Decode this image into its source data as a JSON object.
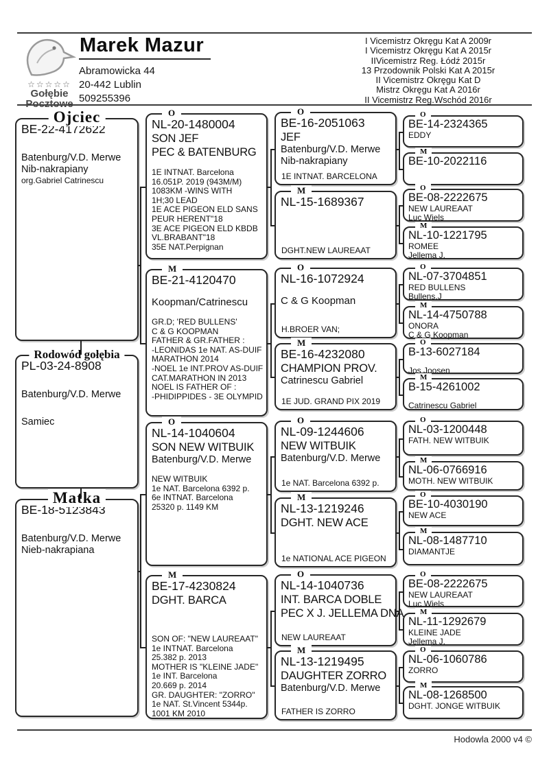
{
  "header": {
    "name": "Marek Mazur",
    "address": [
      "Abramowicka 44",
      "20-442 Lublin",
      "509255396"
    ],
    "logo": {
      "stars": "☆☆☆☆☆",
      "word1": "Gołębie",
      "word2": "Pocztowe",
      "icon": "pigeon-head-icon"
    },
    "achievements": [
      "I Vicemistrz Okręgu Kat A  2009r",
      "I Vicemistrz Okręgu Kat A  2015r",
      "IIVicemistrz Reg. Łódź 2015r",
      "13 Przodownik Polski Kat A 2015r",
      "II Vicemistrz Okręgu Kat D",
      "Mistrz Okręgu Kat A 2016r",
      "II Vicemistrz Reg.Wschód 2016r"
    ]
  },
  "pedigree": {
    "father": {
      "title": "Ojciec",
      "lines": [
        [
          "BE-22-4172622",
          "ring"
        ],
        [
          "",
          "gap24"
        ],
        [
          "Batenburg/V.D. Merwe",
          "owner"
        ],
        [
          "Nib-nakrapiany",
          "owner"
        ],
        [
          "org.Gabriel Catrinescu",
          "org"
        ]
      ]
    },
    "subject": {
      "title": "Rodowód gołębia",
      "lines": [
        [
          "PL-03-24-8908",
          "ring"
        ],
        [
          "",
          "gap24"
        ],
        [
          "Batenburg/V.D. Merwe",
          "owner"
        ],
        [
          "",
          "gap24"
        ],
        [
          "Samiec",
          "owner"
        ]
      ]
    },
    "mother": {
      "title": "Matka",
      "lines": [
        [
          "BE-18-5123843",
          "ring"
        ],
        [
          "",
          "gap24"
        ],
        [
          "Batenburg/V.D. Merwe",
          "owner"
        ],
        [
          "Nieb-nakrapiana",
          "owner"
        ]
      ]
    },
    "gen2": [
      {
        "sex": "O",
        "lines": [
          [
            "NL-20-1480004",
            "ring"
          ],
          [
            "SON JEF",
            "name"
          ],
          [
            "PEC & BATENBURG",
            "name"
          ],
          [
            "",
            "gap"
          ],
          [
            "1E INTNAT. Barcelona",
            "note"
          ],
          [
            "16.051P. 2019 (943M/M)",
            "note"
          ],
          [
            "1083KM -WINS WITH",
            "note"
          ],
          [
            "1H;30 LEAD",
            "note"
          ],
          [
            "1E ACE PIGEON ELD SANS",
            "note"
          ],
          [
            "PEUR HERENT\"18",
            "note"
          ],
          [
            "3E ACE PIGEON ELD KBDB",
            "note"
          ],
          [
            "VL.BRABANT\"18",
            "note"
          ],
          [
            "35E NAT.Perpignan",
            "note"
          ]
        ]
      },
      {
        "sex": "M",
        "lines": [
          [
            "BE-21-4120470",
            "ring"
          ],
          [
            "",
            "gap"
          ],
          [
            "Koopman/Catrinescu",
            "name15"
          ],
          [
            "",
            "gap"
          ],
          [
            "GR.D; 'RED BULLENS'",
            "note"
          ],
          [
            "C & G KOOPMAN",
            "note"
          ],
          [
            "FATHER & GR.FATHER :",
            "note"
          ],
          [
            "-LEONIDAS 1e NAT. AS-DUIF",
            "note"
          ],
          [
            "MARATHON 2014",
            "note"
          ],
          [
            "-NOEL 1e INT.PROV AS-DUIF",
            "note"
          ],
          [
            "CAT.MARATHON IN 2013",
            "note"
          ],
          [
            "NOEL IS FATHER OF :",
            "note"
          ],
          [
            "-PHIDIPPIDES - 3E OLYMPID",
            "note"
          ]
        ]
      },
      {
        "sex": "O",
        "lines": [
          [
            "NL-14-1040604",
            "ring"
          ],
          [
            "SON NEW WITBUIK",
            "name"
          ],
          [
            "Batenburg/V.D. Merwe",
            "owner"
          ],
          [
            "",
            "gap"
          ],
          [
            "NEW WITBUIK",
            "note"
          ],
          [
            "1e NAT. Barcelona 6392 p.",
            "note"
          ],
          [
            "6e INTNAT. Barcelona",
            "note"
          ],
          [
            "25320 p. 1149 KM",
            "note"
          ]
        ]
      },
      {
        "sex": "M",
        "lines": [
          [
            "BE-17-4230824",
            "ring"
          ],
          [
            "DGHT. BARCA",
            "name"
          ],
          [
            "",
            "gap40"
          ],
          [
            "SON OF: \"NEW LAUREAAT\"",
            "note"
          ],
          [
            "1e INTNAT. Barcelona",
            "note"
          ],
          [
            "25.382 p. 2013",
            "note"
          ],
          [
            "MOTHER IS \"KLEINE JADE\"",
            "note"
          ],
          [
            "1e INT. Barcelona",
            "note"
          ],
          [
            "20.669 p. 2014",
            "note"
          ],
          [
            "GR. DAUGHTER: \"ZORRO\"",
            "note"
          ],
          [
            "1e NAT. St.Vincent 5344p.",
            "note"
          ],
          [
            "1001 KM 2010",
            "note"
          ]
        ]
      }
    ],
    "gen3": [
      {
        "sex": "O",
        "lines": [
          [
            "BE-16-2051063",
            "ring"
          ],
          [
            "JEF",
            "name"
          ],
          [
            "Batenburg/V.D. Merwe",
            "owner"
          ],
          [
            "Nib-nakrapiany",
            "owner"
          ]
        ],
        "bottom": "1E INTNAT. BARCELONA"
      },
      {
        "sex": "M",
        "lines": [
          [
            "NL-15-1689367",
            "ring"
          ]
        ],
        "bottom": "DGHT.NEW LAUREAAT"
      },
      {
        "sex": "O",
        "lines": [
          [
            "NL-16-1072924",
            "ring"
          ],
          [
            "",
            "gap"
          ],
          [
            "C & G Koopman",
            "name15"
          ]
        ],
        "bottom": "H.BROER VAN;"
      },
      {
        "sex": "M",
        "lines": [
          [
            "BE-16-4232080",
            "ring"
          ],
          [
            "CHAMPION PROV.",
            "name"
          ],
          [
            "Catrinescu Gabriel",
            "owner"
          ]
        ],
        "bottom": "1E JUD. GRAND PIX 2019"
      },
      {
        "sex": "O",
        "lines": [
          [
            "NL-09-1244606",
            "ring"
          ],
          [
            "NEW WITBUIK",
            "name"
          ],
          [
            "Batenburg/V.D. Merwe",
            "owner"
          ]
        ],
        "bottom": "1e NAT. Barcelona 6392 p."
      },
      {
        "sex": "M",
        "lines": [
          [
            "NL-13-1219246",
            "ring"
          ],
          [
            "DGHT. NEW ACE",
            "name"
          ]
        ],
        "bottom": "1e NATIONAL ACE PIGEON"
      },
      {
        "sex": "O",
        "lines": [
          [
            "NL-14-1040736",
            "ring"
          ],
          [
            "INT. BARCA DOBLE",
            "name"
          ],
          [
            "PEC X J. JELLEMA DNA",
            "name"
          ]
        ],
        "bottom": "NEW LAUREAAT"
      },
      {
        "sex": "M",
        "lines": [
          [
            "NL-13-1219495",
            "ring"
          ],
          [
            "DAUGHTER ZORRO",
            "name"
          ],
          [
            "Batenburg/V.D. Merwe",
            "owner"
          ]
        ],
        "bottom": "FATHER IS ZORRO"
      }
    ],
    "gen4": [
      {
        "sex": "O",
        "lines": [
          [
            "BE-14-2324365",
            "ring16"
          ],
          [
            "EDDY",
            "small"
          ]
        ]
      },
      {
        "sex": "M",
        "lines": [
          [
            "BE-10-2022116",
            "ring16"
          ]
        ]
      },
      {
        "sex": "O",
        "lines": [
          [
            "BE-08-2222675",
            "ring16"
          ],
          [
            "NEW LAUREAAT",
            "small"
          ],
          [
            "Luc Wiels",
            "small"
          ]
        ]
      },
      {
        "sex": "M",
        "lines": [
          [
            "NL-10-1221795",
            "ring16"
          ],
          [
            "ROMEE",
            "small"
          ],
          [
            "Jellema J.",
            "small"
          ]
        ]
      },
      {
        "sex": "O",
        "lines": [
          [
            "NL-07-3704851",
            "ring16"
          ],
          [
            "RED BULLENS",
            "small"
          ],
          [
            "Bullens.J",
            "small"
          ]
        ]
      },
      {
        "sex": "M",
        "lines": [
          [
            "NL-14-4750788",
            "ring16"
          ],
          [
            "ONORA",
            "small"
          ],
          [
            "C & G Koopman",
            "small"
          ]
        ]
      },
      {
        "sex": "O",
        "lines": [
          [
            "B-13-6027184",
            "ring16"
          ],
          [
            "",
            "gapS"
          ],
          [
            "Jos Joosen",
            "small"
          ]
        ]
      },
      {
        "sex": "M",
        "lines": [
          [
            "B-15-4261002",
            "ring16"
          ],
          [
            "",
            "gapS"
          ],
          [
            "Catrinescu Gabriel",
            "small"
          ]
        ]
      },
      {
        "sex": "O",
        "lines": [
          [
            "NL-03-1200448",
            "ring16"
          ],
          [
            "FATH. NEW WITBUIK",
            "small"
          ]
        ]
      },
      {
        "sex": "M",
        "lines": [
          [
            "NL-06-0766916",
            "ring16"
          ],
          [
            "MOTH. NEW WITBUIK",
            "small"
          ]
        ]
      },
      {
        "sex": "O",
        "lines": [
          [
            "BE-10-4030190",
            "ring16"
          ],
          [
            "NEW ACE",
            "small"
          ]
        ]
      },
      {
        "sex": "M",
        "lines": [
          [
            "NL-08-1487710",
            "ring16"
          ],
          [
            "DIAMANTJE",
            "small"
          ]
        ]
      },
      {
        "sex": "O",
        "lines": [
          [
            "BE-08-2222675",
            "ring16"
          ],
          [
            "NEW LAUREAAT",
            "small"
          ],
          [
            "Luc Wiels",
            "small"
          ]
        ]
      },
      {
        "sex": "M",
        "lines": [
          [
            "NL-11-1292679",
            "ring16"
          ],
          [
            "KLEINE JADE",
            "small"
          ],
          [
            "Jellema J.",
            "small"
          ]
        ]
      },
      {
        "sex": "O",
        "lines": [
          [
            "NL-06-1060786",
            "ring16"
          ],
          [
            "ZORRO",
            "small"
          ]
        ]
      },
      {
        "sex": "M",
        "lines": [
          [
            "NL-08-1268500",
            "ring16"
          ],
          [
            "DGHT. JONGE WITBUIK",
            "small"
          ]
        ]
      }
    ]
  },
  "footer": {
    "credit": "Hodowla 2000 v4 ©"
  }
}
